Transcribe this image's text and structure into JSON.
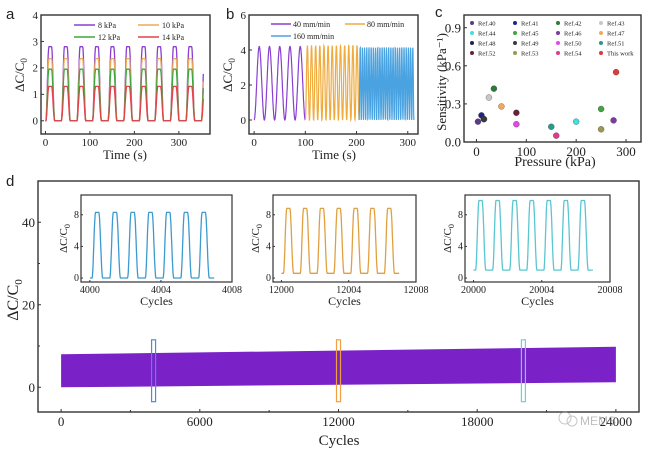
{
  "figure": {
    "panel_labels": [
      "a",
      "b",
      "c",
      "d"
    ],
    "watermark": "MEMS"
  },
  "chart_data": [
    {
      "panel": "a",
      "type": "line",
      "title": "",
      "xlabel": "Time (s)",
      "ylabel": "ΔC/C0",
      "xlim": [
        -10,
        370
      ],
      "ylim": [
        -0.5,
        4
      ],
      "xticks": [
        "0",
        "100",
        "200",
        "300"
      ],
      "xtick_values": [
        0,
        100,
        200,
        300
      ],
      "yticks": [
        "0",
        "1",
        "2",
        "3",
        "4"
      ],
      "ytick_values": [
        0,
        1,
        2,
        3,
        4
      ],
      "legend": "top",
      "cycles": 10,
      "period_s": 35,
      "series": [
        {
          "name": "8 kPa",
          "color": "#8a3fd0",
          "peak": 2.8
        },
        {
          "name": "10 kPa",
          "color": "#f0a85a",
          "peak": 2.35
        },
        {
          "name": "12 kPa",
          "color": "#3fa53f",
          "peak": 1.95
        },
        {
          "name": "14 kPa",
          "color": "#e0444a",
          "peak": 1.3
        }
      ]
    },
    {
      "panel": "b",
      "type": "line",
      "title": "",
      "xlabel": "Time (s)",
      "ylabel": "ΔC/C0",
      "xlim": [
        -10,
        320
      ],
      "ylim": [
        -0.8,
        6
      ],
      "xticks": [
        "0",
        "100",
        "200",
        "300"
      ],
      "xtick_values": [
        0,
        100,
        200,
        300
      ],
      "yticks": [
        "0",
        "2",
        "4",
        "6"
      ],
      "ytick_values": [
        0,
        2,
        4,
        6
      ],
      "legend": "top",
      "series": [
        {
          "name": "40 mm/min",
          "color": "#8a3fd0",
          "t_start": 0,
          "t_end": 100,
          "cycles": 5,
          "peak": 4.2
        },
        {
          "name": "80 mm/min",
          "color": "#f0ab3c",
          "t_start": 100,
          "t_end": 205,
          "cycles": 13,
          "peak": 4.25
        },
        {
          "name": "160 mm/min",
          "color": "#4aa3e0",
          "t_start": 205,
          "t_end": 312,
          "cycles": 25,
          "peak": 4.15
        }
      ]
    },
    {
      "panel": "c",
      "type": "scatter",
      "title": "",
      "xlabel": "Pressure (kPa)",
      "ylabel": "Sensitivity (kPa⁻¹)",
      "xlim": [
        -25,
        330
      ],
      "ylim": [
        0,
        1.0
      ],
      "xticks": [
        "0",
        "100",
        "200",
        "300"
      ],
      "xtick_values": [
        0,
        100,
        200,
        300
      ],
      "yticks": [
        "0.0",
        "0.3",
        "0.6",
        "0.9"
      ],
      "ytick_values": [
        0,
        0.3,
        0.6,
        0.9
      ],
      "legend": "top",
      "points": [
        {
          "name": "Ref.40",
          "color": "#5b3a8c",
          "x": 3,
          "y": 0.16
        },
        {
          "name": "Ref.41",
          "color": "#22228a",
          "x": 10,
          "y": 0.21
        },
        {
          "name": "Ref.42",
          "color": "#2e7a3a",
          "x": 35,
          "y": 0.42
        },
        {
          "name": "Ref.43",
          "color": "#c8c8cc",
          "x": 25,
          "y": 0.35
        },
        {
          "name": "Ref.44",
          "color": "#3fe0e0",
          "x": 200,
          "y": 0.16
        },
        {
          "name": "Ref.45",
          "color": "#3fa53f",
          "x": 250,
          "y": 0.26
        },
        {
          "name": "Ref.46",
          "color": "#7a3aa0",
          "x": 275,
          "y": 0.17
        },
        {
          "name": "Ref.47",
          "color": "#f0a85a",
          "x": 50,
          "y": 0.28
        },
        {
          "name": "Ref.48",
          "color": "#25204a",
          "x": 15,
          "y": 0.18
        },
        {
          "name": "Ref.49",
          "color": "#3a3a3a",
          "x": 15,
          "y": 0.18
        },
        {
          "name": "Ref.50",
          "color": "#e04ae0",
          "x": 80,
          "y": 0.14
        },
        {
          "name": "Ref.51",
          "color": "#2a9a8a",
          "x": 150,
          "y": 0.12
        },
        {
          "name": "Ref.52",
          "color": "#6a1f3a",
          "x": 80,
          "y": 0.23
        },
        {
          "name": "Ref.53",
          "color": "#9a9a4a",
          "x": 250,
          "y": 0.1
        },
        {
          "name": "Ref.54",
          "color": "#e03a8a",
          "x": 160,
          "y": 0.05
        },
        {
          "name": "This work",
          "color": "#e03a3a",
          "x": 280,
          "y": 0.55
        }
      ]
    },
    {
      "panel": "d",
      "type": "area",
      "title": "",
      "xlabel": "Cycles",
      "ylabel": "ΔC/C0",
      "xlim": [
        -1000,
        25000
      ],
      "ylim": [
        -6,
        50
      ],
      "xticks": [
        "0",
        "6000",
        "12000",
        "18000",
        "24000"
      ],
      "xtick_values": [
        0,
        6000,
        12000,
        18000,
        24000
      ],
      "yticks": [
        "0",
        "20",
        "40"
      ],
      "ytick_values": [
        0,
        20,
        40
      ],
      "band": {
        "color": "#7a22c8",
        "x_start": 0,
        "x_end": 24000,
        "low_start": 0,
        "low_end": 1.2,
        "high_start": 8,
        "high_end": 9.8
      },
      "highlight_boxes": [
        {
          "x": 4000,
          "color": "#4a8ae0"
        },
        {
          "x": 12000,
          "color": "#f0a040"
        },
        {
          "x": 20000,
          "color": "#6ad0e0"
        }
      ],
      "insets": [
        {
          "xlabel": "Cycles",
          "ylabel": "ΔC/C0",
          "color": "#3c9ad0",
          "xticks": [
            "4000",
            "4004",
            "4008"
          ],
          "x_start": 4000,
          "yticks": [
            "0",
            "4",
            "8"
          ],
          "ylim": [
            -0.5,
            10.5
          ],
          "cycles": 7,
          "low": 0,
          "peak": 8.3
        },
        {
          "xlabel": "Cycles",
          "ylabel": "ΔC/C0",
          "color": "#e0a040",
          "xticks": [
            "12000",
            "12004",
            "12008"
          ],
          "x_start": 12000,
          "yticks": [
            "0",
            "4",
            "8"
          ],
          "ylim": [
            -0.5,
            10.5
          ],
          "cycles": 7,
          "low": 0.6,
          "peak": 8.8
        },
        {
          "xlabel": "Cycles",
          "ylabel": "ΔC/C0",
          "color": "#5ac6d0",
          "xticks": [
            "20000",
            "20004",
            "20008"
          ],
          "x_start": 20000,
          "yticks": [
            "0",
            "4",
            "8"
          ],
          "ylim": [
            -0.5,
            10.5
          ],
          "cycles": 7,
          "low": 1.0,
          "peak": 9.8
        }
      ]
    }
  ]
}
